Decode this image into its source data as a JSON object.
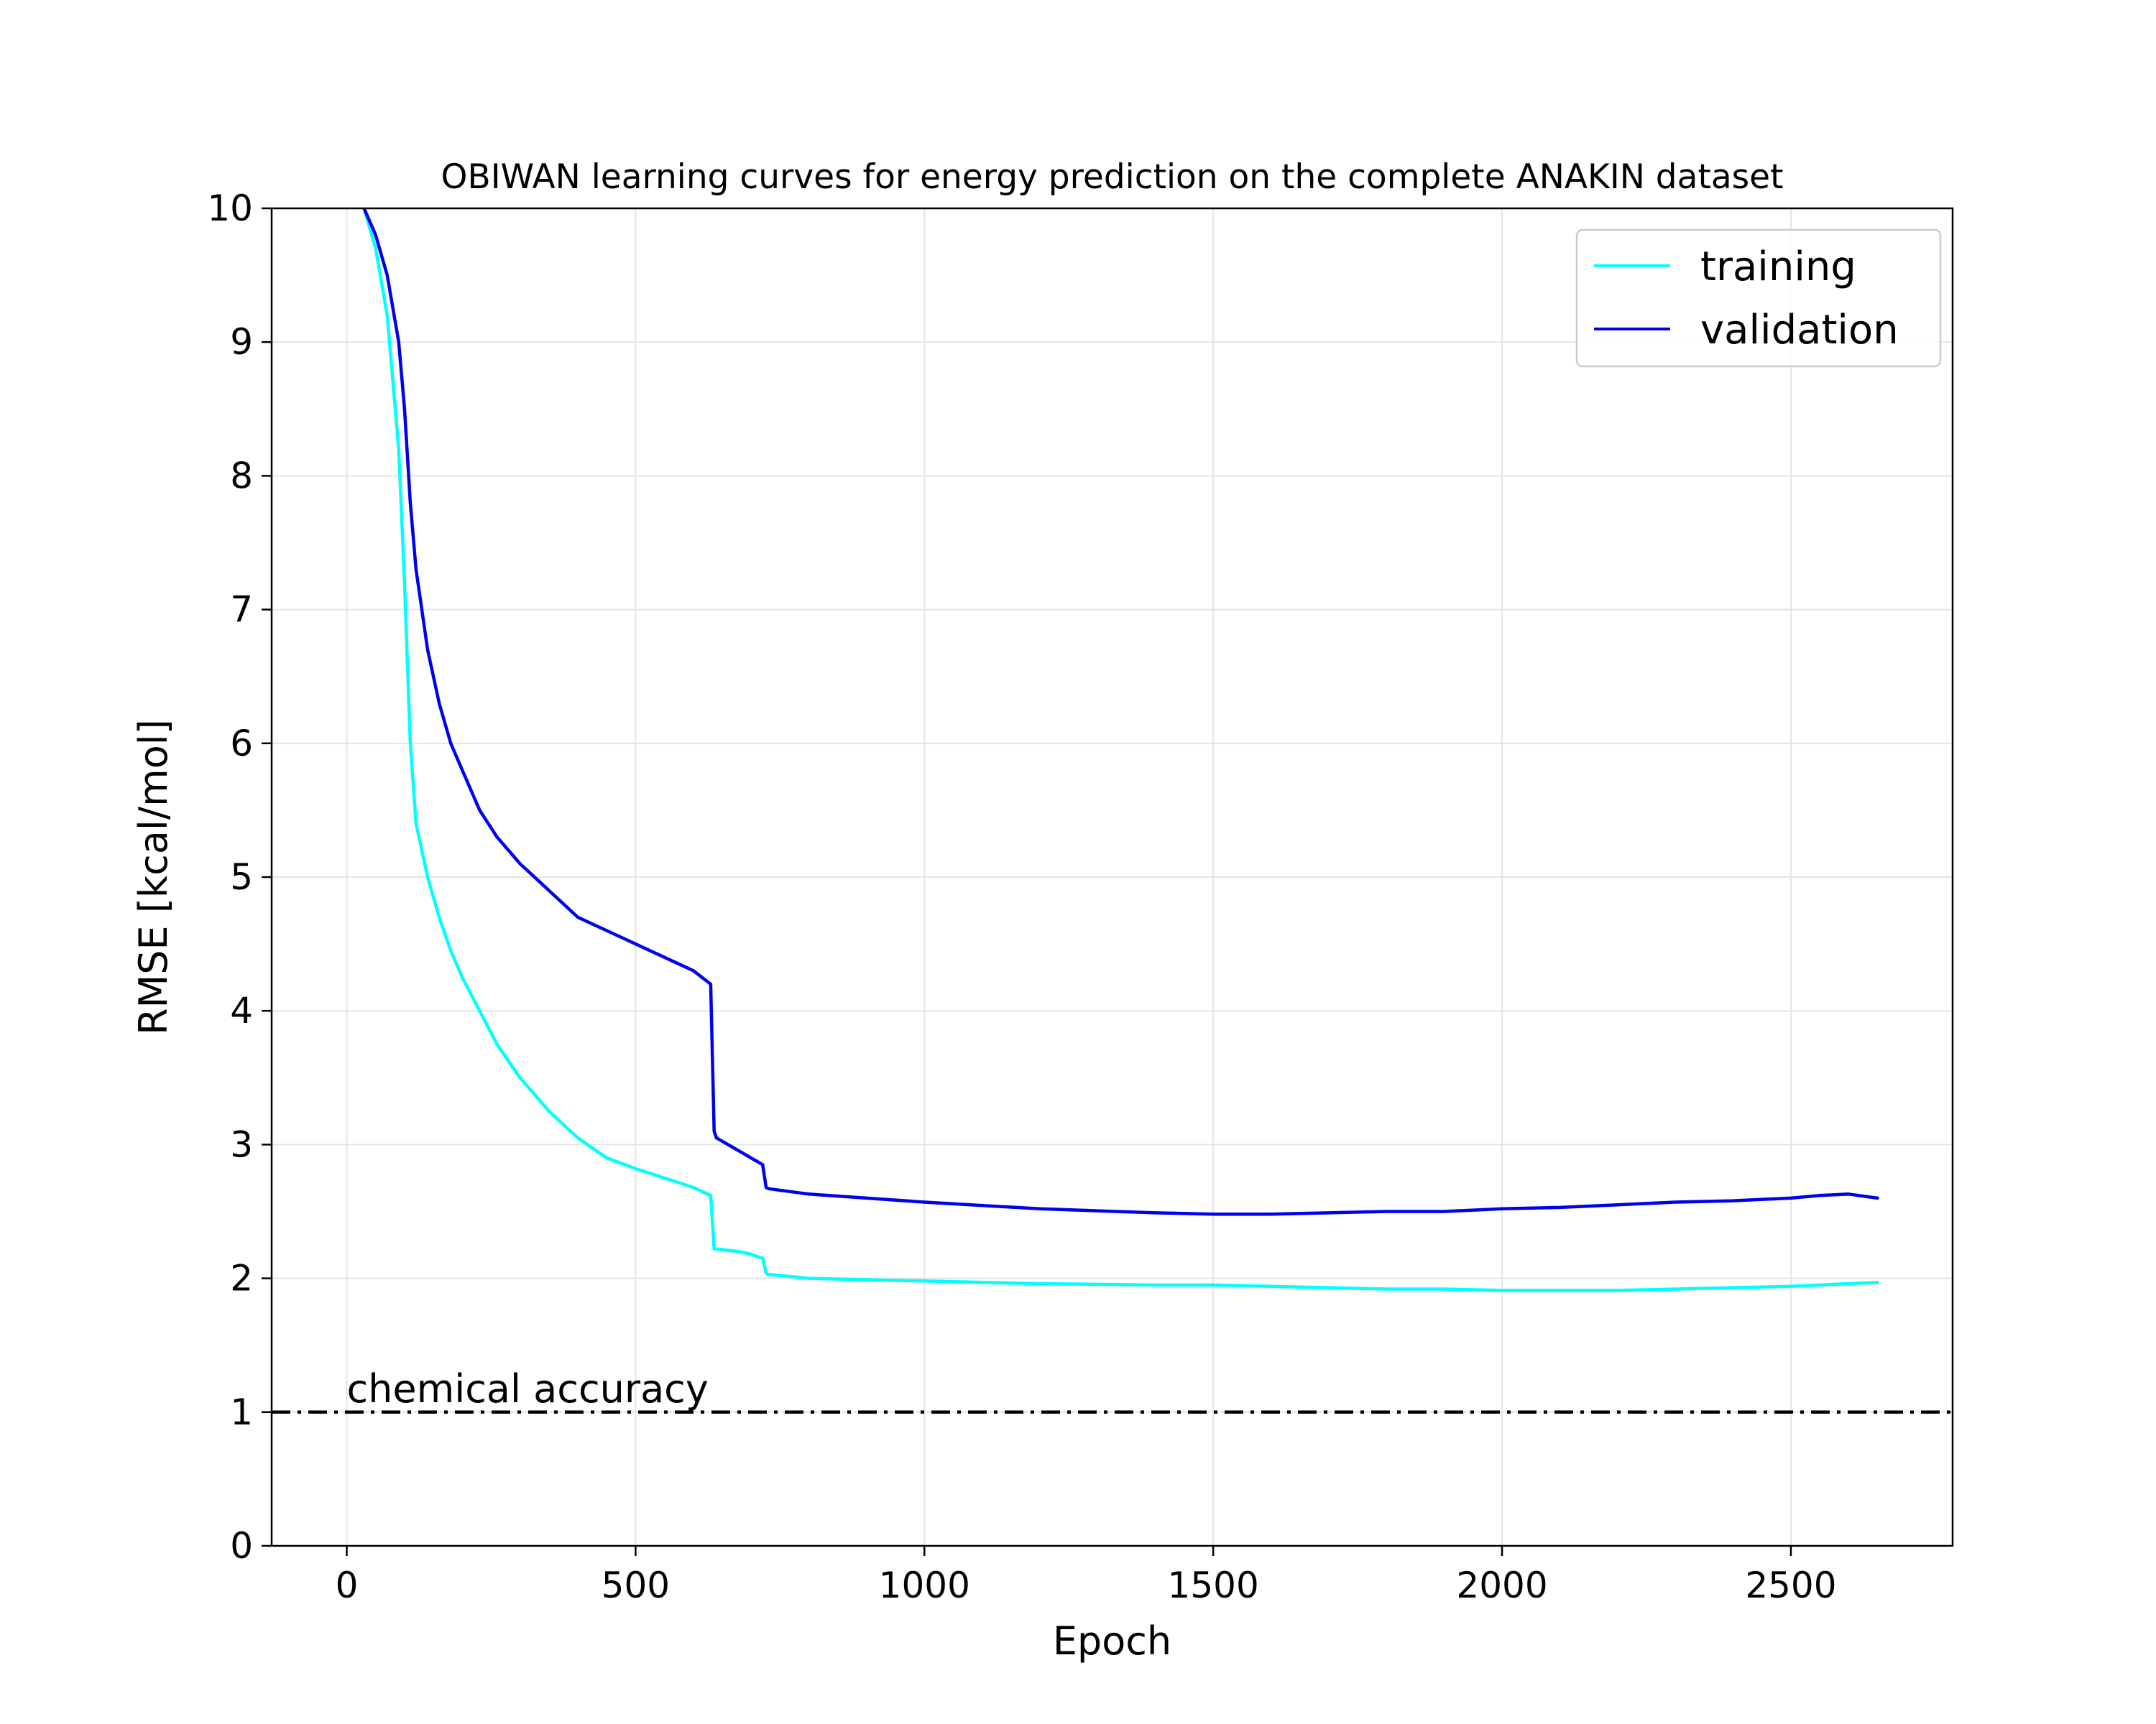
{
  "chart_data": {
    "type": "line",
    "title": "OBIWAN learning curves for energy prediction on the complete ANAKIN dataset",
    "xlabel": "Epoch",
    "ylabel": "RMSE [kcal/mol]",
    "xlim": [
      -130,
      2780
    ],
    "ylim": [
      0,
      10
    ],
    "xticks": [
      0,
      500,
      1000,
      1500,
      2000,
      2500
    ],
    "yticks": [
      0,
      1,
      2,
      3,
      4,
      5,
      6,
      7,
      8,
      9,
      10
    ],
    "grid": true,
    "legend_position": "top-right",
    "reference_line": {
      "y": 1,
      "label": "chemical accuracy",
      "style": "dash-dot",
      "color": "#000000"
    },
    "series": [
      {
        "name": "training",
        "color": "#00ffff",
        "x": [
          30,
          50,
          70,
          90,
          100,
          110,
          120,
          140,
          160,
          180,
          200,
          230,
          260,
          300,
          350,
          400,
          450,
          500,
          550,
          600,
          630,
          636,
          640,
          680,
          700,
          720,
          726,
          730,
          800,
          900,
          1000,
          1200,
          1400,
          1500,
          1600,
          1700,
          1800,
          1900,
          2000,
          2100,
          2200,
          2300,
          2400,
          2500,
          2550,
          2600,
          2650
        ],
        "y": [
          10.0,
          9.7,
          9.2,
          8.2,
          7.2,
          6.0,
          5.4,
          5.0,
          4.7,
          4.45,
          4.25,
          4.0,
          3.75,
          3.5,
          3.25,
          3.05,
          2.9,
          2.82,
          2.75,
          2.68,
          2.62,
          2.22,
          2.22,
          2.2,
          2.18,
          2.15,
          2.04,
          2.03,
          2.0,
          1.99,
          1.98,
          1.96,
          1.95,
          1.95,
          1.94,
          1.93,
          1.92,
          1.92,
          1.91,
          1.91,
          1.91,
          1.92,
          1.93,
          1.94,
          1.95,
          1.96,
          1.97
        ]
      },
      {
        "name": "validation",
        "color": "#0000ee",
        "x": [
          30,
          50,
          70,
          90,
          100,
          110,
          120,
          140,
          160,
          180,
          200,
          230,
          260,
          300,
          350,
          400,
          450,
          500,
          550,
          600,
          630,
          636,
          640,
          680,
          700,
          720,
          726,
          730,
          800,
          900,
          1000,
          1200,
          1400,
          1500,
          1600,
          1700,
          1800,
          1900,
          2000,
          2100,
          2200,
          2300,
          2400,
          2500,
          2550,
          2600,
          2650
        ],
        "y": [
          10.0,
          9.8,
          9.5,
          9.0,
          8.5,
          7.8,
          7.3,
          6.7,
          6.3,
          6.0,
          5.8,
          5.5,
          5.3,
          5.1,
          4.9,
          4.7,
          4.6,
          4.5,
          4.4,
          4.3,
          4.2,
          3.1,
          3.05,
          2.95,
          2.9,
          2.85,
          2.68,
          2.67,
          2.63,
          2.6,
          2.57,
          2.52,
          2.49,
          2.48,
          2.48,
          2.49,
          2.5,
          2.5,
          2.52,
          2.53,
          2.55,
          2.57,
          2.58,
          2.6,
          2.62,
          2.63,
          2.6
        ]
      }
    ]
  }
}
